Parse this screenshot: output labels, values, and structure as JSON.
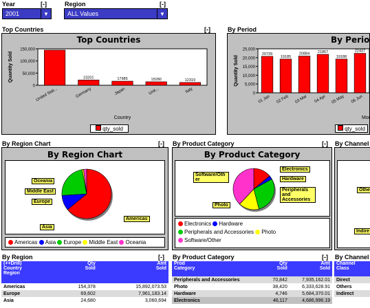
{
  "filters": {
    "year_label": "Year",
    "year_value": "2001",
    "region_label": "Region",
    "region_value": "ALL Values",
    "collapse": "[-]"
  },
  "top_countries": {
    "section_title": "Top Countries",
    "collapse": "[-]",
    "legend": "qty_sold",
    "chart_data": {
      "type": "bar",
      "title": "Top Countries",
      "xlabel": "Country",
      "ylabel": "Quantity Sold",
      "categories": [
        "United Stat...",
        "Germany",
        "Japan",
        "Unit...",
        "Italy"
      ],
      "values": [
        154378,
        23201,
        17985,
        15280,
        12319
      ],
      "labels": [
        "",
        "23201",
        "17985",
        "15280",
        "12319"
      ],
      "yticks": [
        "0",
        "50,000",
        "100,000",
        "150,000"
      ],
      "ylim": [
        0,
        160000
      ],
      "grid": false,
      "legend_position": "bottom"
    }
  },
  "by_period": {
    "section_title": "By Period",
    "legend": "qty_sold",
    "chart_data": {
      "type": "bar",
      "title": "By Perio",
      "xlabel": "Mor",
      "ylabel": "Quantity Sold",
      "categories": [
        "01 Jan",
        "02 Feb",
        "03 Mar",
        "04 Apr",
        "05 May",
        "06 Jun"
      ],
      "values": [
        20739,
        19185,
        20884,
        21867,
        19188,
        22437
      ],
      "labels": [
        "20739",
        "19185",
        "20884",
        "21867",
        "19188",
        "22437"
      ],
      "yticks": [
        "0",
        "5,000",
        "10,000",
        "15,000",
        "20,000",
        "25,000"
      ],
      "ylim": [
        0,
        25000
      ],
      "legend_position": "bottom"
    }
  },
  "by_region_chart": {
    "section_title": "By Region Chart",
    "collapse": "[-]",
    "chart_data": {
      "type": "pie",
      "title": "By Region Chart",
      "categories": [
        "Americas",
        "Asia",
        "Europe",
        "Middle East",
        "Oceania"
      ],
      "values": [
        64,
        10,
        23,
        1,
        2
      ],
      "colors": [
        "#ff0000",
        "#0000ff",
        "#00cc00",
        "#ffff00",
        "#ff33cc"
      ]
    }
  },
  "by_product_category_chart": {
    "section_title": "By Product Category",
    "collapse": "[-]",
    "chart_data": {
      "type": "pie",
      "title": "By Product Category",
      "categories": [
        "Electronics",
        "Hardware",
        "Peripherals and Accessories",
        "Photo",
        "Software/Other"
      ],
      "labels": [
        "Electronics",
        "Hardware",
        "Peripherals and Accessories",
        "Photo",
        "Software/Oth er"
      ],
      "values": [
        14,
        3,
        29,
        16,
        38
      ],
      "colors": [
        "#ff0000",
        "#0000ff",
        "#00cc00",
        "#ffff00",
        "#ff33cc"
      ]
    }
  },
  "by_channel": {
    "section_title": "By Channel",
    "labels": [
      "Othe",
      "Indire"
    ]
  },
  "by_region_table": {
    "section_title": "By Region",
    "collapse": "[-]",
    "headers": [
      "(++Drill)\nCountry\nRegion",
      "Qty\nSold",
      "Amt\nSold"
    ],
    "rows": [
      [
        "Americas",
        "154,378",
        "15,892,073.53"
      ],
      [
        "Europe",
        "69,602",
        "7,961,183.14"
      ],
      [
        "Asia",
        "24,680",
        "3,060,694"
      ]
    ]
  },
  "by_product_category_table": {
    "section_title": "By Product Category",
    "collapse": "[-]",
    "headers": [
      "Prod\nCategory",
      "Qty\nSold",
      "Amt\nSold"
    ],
    "rows": [
      [
        "Peripherals and Accessories",
        "70,842",
        "7,935,162.01"
      ],
      [
        "Photo",
        "38,420",
        "6,333,628.91"
      ],
      [
        "Hardware",
        "4,746",
        "5,684,370.01"
      ],
      [
        "Electronics",
        "46,117",
        "4,686,996.19"
      ]
    ]
  },
  "by_channel_table": {
    "section_title": "By Channel",
    "headers": [
      "Channel\nClass"
    ],
    "rows": [
      "Direct",
      "Others",
      "Indirect"
    ]
  }
}
